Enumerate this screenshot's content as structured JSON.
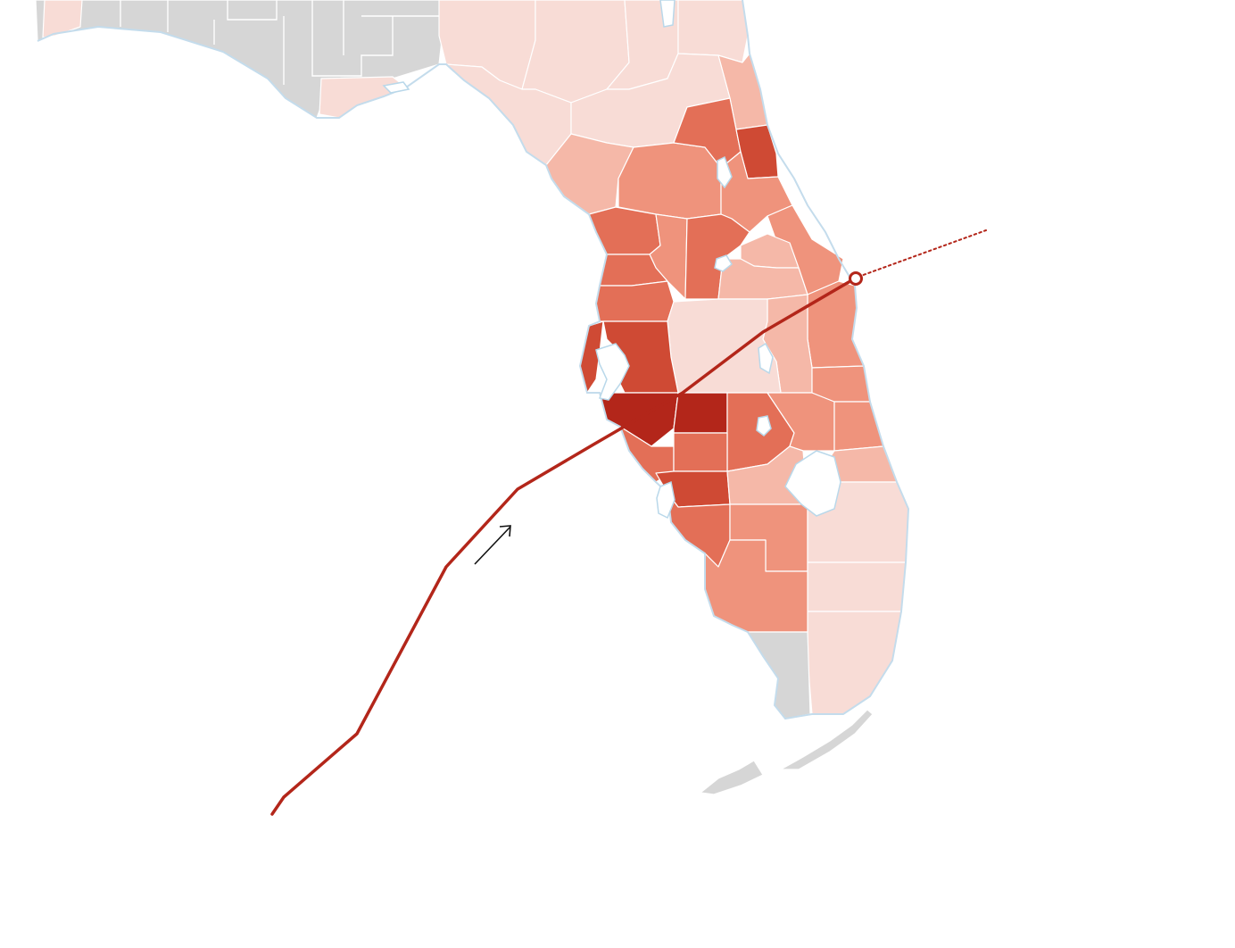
{
  "map": {
    "region": "Florida",
    "colors": {
      "no_data": "#d6d6d6",
      "level_1": "#f8dcd6",
      "level_2": "#f5b8a8",
      "level_3": "#ef937c",
      "level_4": "#e36f57",
      "level_5": "#cf4a34",
      "level_6": "#b3261a",
      "track": "#b3261a",
      "water_edge": "#b9d8ea"
    },
    "track": {
      "style_observed": "solid",
      "style_forecast": "dotted",
      "current_position_marker": "open-circle",
      "direction_icon": "arrow-northeast-icon"
    }
  }
}
